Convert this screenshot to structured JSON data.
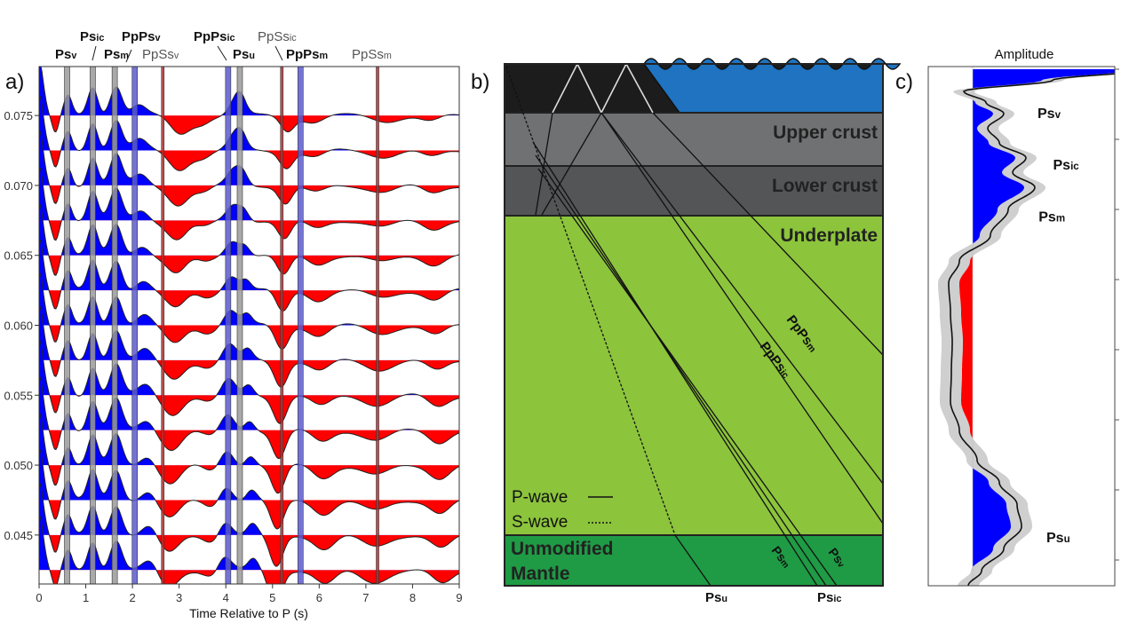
{
  "chart_data": [
    {
      "panel": "a)",
      "type": "area",
      "title": "",
      "xlabel": "Time Relative to P (s)",
      "ylabel": "",
      "xlim": [
        0,
        9
      ],
      "xticks": [
        "0",
        "1",
        "2",
        "3",
        "4",
        "5",
        "6",
        "7",
        "8",
        "9"
      ],
      "ylim": [
        0.0415,
        0.0785
      ],
      "yticks": [
        "0.045",
        "0.050",
        "0.055",
        "0.060",
        "0.065",
        "0.070",
        "0.075"
      ],
      "ytick_values": [
        0.045,
        0.05,
        0.055,
        0.06,
        0.065,
        0.07,
        0.075
      ],
      "trace_slowness": [
        0.075,
        0.0725,
        0.07,
        0.0675,
        0.065,
        0.0625,
        0.06,
        0.0575,
        0.055,
        0.0525,
        0.05,
        0.0475,
        0.045,
        0.0425
      ],
      "positive_color": "#0000ff",
      "negative_color": "#ff0000",
      "pulse_model": [
        {
          "t": 0.0,
          "amp": 1.6,
          "width": 0.13
        },
        {
          "t": 0.35,
          "amp": -0.55,
          "width": 0.1
        },
        {
          "t": 0.62,
          "amp": 0.55,
          "width": 0.12
        },
        {
          "t": 1.15,
          "amp": 0.85,
          "width": 0.15
        },
        {
          "t": 1.65,
          "amp": 0.9,
          "width": 0.18
        },
        {
          "t": 2.25,
          "amp": 0.3,
          "width": 0.22
        },
        {
          "t": 2.9,
          "amp": -0.55,
          "width": 0.3
        },
        {
          "t": 3.6,
          "amp": -0.2,
          "width": 0.25
        },
        {
          "t": 4.1,
          "amp": 0.45,
          "width": 0.2
        },
        {
          "t": 4.45,
          "amp": 0.3,
          "width": 0.15
        },
        {
          "t": 5.2,
          "amp": -0.7,
          "width": 0.2
        },
        {
          "t": 6.0,
          "amp": -0.3,
          "width": 0.3
        },
        {
          "t": 7.3,
          "amp": -0.25,
          "width": 0.4
        },
        {
          "t": 8.5,
          "amp": -0.3,
          "width": 0.3
        }
      ],
      "phase_lines": [
        {
          "t": 0.6,
          "kind": "Ps",
          "color": "#9a9a9a"
        },
        {
          "t": 1.15,
          "kind": "Ps",
          "color": "#9a9a9a"
        },
        {
          "t": 1.62,
          "kind": "Ps",
          "color": "#9a9a9a"
        },
        {
          "t": 2.05,
          "kind": "PpPs",
          "color": "#5a5ad0"
        },
        {
          "t": 2.65,
          "kind": "PpSs",
          "color": "#b03030"
        },
        {
          "t": 4.05,
          "kind": "PpPs",
          "color": "#5a5ad0"
        },
        {
          "t": 4.3,
          "kind": "Ps",
          "color": "#9a9a9a"
        },
        {
          "t": 5.2,
          "kind": "PpSs",
          "color": "#b03030"
        },
        {
          "t": 5.6,
          "kind": "PpPs",
          "color": "#5a5ad0"
        },
        {
          "t": 7.25,
          "kind": "PpSs",
          "color": "#b03030"
        }
      ],
      "phase_labels": [
        {
          "main": "Ps",
          "sub": "v",
          "style": "bold"
        },
        {
          "main": "Ps",
          "sub": "ic",
          "style": "bold"
        },
        {
          "main": "Ps",
          "sub": "m",
          "style": "bold"
        },
        {
          "main": "PpPs",
          "sub": "v",
          "style": "bold"
        },
        {
          "main": "PpSs",
          "sub": "v",
          "style": "thin"
        },
        {
          "main": "PpPs",
          "sub": "ic",
          "style": "bold"
        },
        {
          "main": "Ps",
          "sub": "u",
          "style": "bold"
        },
        {
          "main": "PpSs",
          "sub": "ic",
          "style": "thin"
        },
        {
          "main": "PpPs",
          "sub": "m",
          "style": "bold"
        },
        {
          "main": "PpSs",
          "sub": "m",
          "style": "thin"
        }
      ]
    },
    {
      "panel": "c)",
      "type": "line",
      "title": "Amplitude",
      "series_note": "stacked amplitude vs time, with uncertainty band",
      "time": [
        0.0,
        0.15,
        0.3,
        0.45,
        0.6,
        0.8,
        1.0,
        1.2,
        1.4,
        1.6,
        1.9,
        2.25,
        2.6,
        2.9,
        3.3,
        3.7,
        4.1,
        4.5,
        4.9,
        5.3,
        5.6,
        5.9,
        6.2,
        6.5,
        6.8,
        7.0
      ],
      "amplitude": [
        2.0,
        0.9,
        -0.1,
        0.15,
        0.35,
        0.17,
        0.3,
        0.6,
        0.45,
        0.7,
        0.4,
        0.2,
        -0.15,
        -0.27,
        -0.25,
        -0.23,
        -0.24,
        -0.25,
        -0.15,
        0.05,
        0.3,
        0.5,
        0.55,
        0.35,
        0.1,
        -0.05
      ],
      "uncertainty": 0.12,
      "tmax": 7.0,
      "labels": [
        {
          "main": "Ps",
          "sub": "v",
          "t": 0.6
        },
        {
          "main": "Ps",
          "sub": "ic",
          "t": 1.3
        },
        {
          "main": "Ps",
          "sub": "m",
          "t": 2.0
        },
        {
          "main": "Ps",
          "sub": "u",
          "t": 6.35
        }
      ]
    }
  ],
  "diagram": {
    "panel": "b)",
    "layers": [
      "Upper crust",
      "Lower crust",
      "Underplate"
    ],
    "mantle_lines": [
      "Unmodified",
      "Mantle"
    ],
    "legend": {
      "p_wave": "P-wave",
      "s_wave": "S-wave"
    },
    "ray_labels": [
      {
        "main": "PpPs",
        "sub": "m"
      },
      {
        "main": "PpPs",
        "sub": "ic"
      },
      {
        "main": "Ps",
        "sub": "m"
      },
      {
        "main": "Ps",
        "sub": "v"
      },
      {
        "main": "Ps",
        "sub": "u"
      },
      {
        "main": "Ps",
        "sub": "ic"
      }
    ],
    "colors": {
      "sediment": "#1c1c1c",
      "water": "#1f73c0",
      "upper": "#707172",
      "lower": "#545557",
      "underplate": "#8cc43c",
      "mantle": "#1f9b45"
    }
  }
}
